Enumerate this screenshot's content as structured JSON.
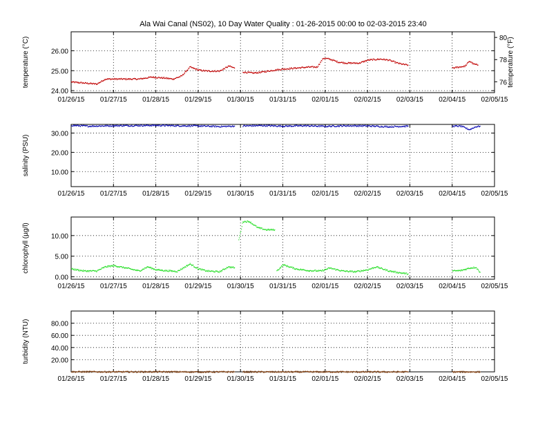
{
  "figure": {
    "title": "Ala Wai Canal (NS02), 10 Day Water Quality : 01-26-2015 00:00 to 02-03-2015 23:40"
  },
  "chart_data": [
    {
      "type": "scatter",
      "ylabel": "temperature (°C)",
      "y2label": "temperature (°F)",
      "x_tick_labels": [
        "01/26/15",
        "01/27/15",
        "01/28/15",
        "01/29/15",
        "01/30/15",
        "01/31/15",
        "02/01/15",
        "02/02/15",
        "02/03/15",
        "02/04/15",
        "02/05/15"
      ],
      "xlim": [
        0,
        10
      ],
      "ylim": [
        23.9,
        26.95
      ],
      "y_ticks": [
        24.0,
        25.0,
        26.0
      ],
      "y_tick_labels": [
        "24.00",
        "25.00",
        "26.00"
      ],
      "y2_ticks_f": [
        76,
        78,
        80
      ],
      "y2_tick_labels": [
        "76",
        "78",
        "80"
      ],
      "grid": true,
      "color": "#c00000",
      "segments": [
        {
          "x": [
            0.0,
            0.3,
            0.6,
            0.8,
            1.0,
            1.3,
            1.6,
            1.9,
            2.2,
            2.4,
            2.6,
            2.8,
            3.0,
            3.2,
            3.5,
            3.72,
            3.85
          ],
          "y": [
            24.45,
            24.4,
            24.35,
            24.6,
            24.6,
            24.6,
            24.6,
            24.7,
            24.65,
            24.6,
            24.75,
            25.2,
            25.05,
            25.0,
            25.0,
            25.25,
            25.15
          ]
        },
        {
          "x": [
            4.05,
            4.3,
            4.5,
            4.8,
            5.0,
            5.3,
            5.6,
            5.8,
            5.95,
            6.1,
            6.3,
            6.5,
            6.8,
            7.0,
            7.3,
            7.5,
            7.7,
            7.8,
            7.95
          ],
          "y": [
            24.95,
            24.9,
            24.95,
            25.05,
            25.1,
            25.15,
            25.2,
            25.2,
            25.65,
            25.6,
            25.45,
            25.4,
            25.4,
            25.55,
            25.6,
            25.55,
            25.4,
            25.35,
            25.3
          ]
        },
        {
          "x": [
            9.0,
            9.15,
            9.3,
            9.4,
            9.5,
            9.6
          ],
          "y": [
            25.15,
            25.2,
            25.25,
            25.5,
            25.35,
            25.3
          ]
        }
      ]
    },
    {
      "type": "scatter",
      "ylabel": "salinity (PSU)",
      "x_tick_labels": [
        "01/26/15",
        "01/27/15",
        "01/28/15",
        "01/29/15",
        "01/30/15",
        "01/31/15",
        "02/01/15",
        "02/02/15",
        "02/03/15",
        "02/04/15",
        "02/05/15"
      ],
      "xlim": [
        0,
        10
      ],
      "ylim": [
        2.2,
        34.5
      ],
      "y_ticks": [
        10,
        20,
        30
      ],
      "y_tick_labels": [
        "10.00",
        "20.00",
        "30.00"
      ],
      "grid": true,
      "color": "#0000b0",
      "segments": [
        {
          "x": [
            0.0,
            0.4,
            0.9,
            1.5,
            2.0,
            2.5,
            3.0,
            3.5,
            3.85
          ],
          "y": [
            34.2,
            33.8,
            34.0,
            34.1,
            34.2,
            34.0,
            33.9,
            33.6,
            33.8
          ]
        },
        {
          "x": [
            4.05,
            4.5,
            5.0,
            5.5,
            6.0,
            6.5,
            7.0,
            7.5,
            7.95
          ],
          "y": [
            33.9,
            34.1,
            33.8,
            34.0,
            33.7,
            34.0,
            33.9,
            33.5,
            33.8
          ]
        },
        {
          "x": [
            9.0,
            9.2,
            9.4,
            9.55,
            9.65
          ],
          "y": [
            33.8,
            33.8,
            32.0,
            33.5,
            33.8
          ]
        }
      ]
    },
    {
      "type": "scatter",
      "ylabel": "chlorophyll (µg/l)",
      "x_tick_labels": [
        "01/26/15",
        "01/27/15",
        "01/28/15",
        "01/29/15",
        "01/30/15",
        "01/31/15",
        "02/01/15",
        "02/02/15",
        "02/03/15",
        "02/04/15",
        "02/05/15"
      ],
      "xlim": [
        0,
        10
      ],
      "ylim": [
        -0.6,
        14.5
      ],
      "y_ticks": [
        0,
        5,
        10
      ],
      "y_tick_labels": [
        "0.00",
        "5.00",
        "10.00"
      ],
      "grid": true,
      "color": "#22dd22",
      "segments": [
        {
          "x": [
            0.0,
            0.3,
            0.6,
            0.8,
            1.0,
            1.3,
            1.6,
            1.8,
            2.0,
            2.2,
            2.5,
            2.8,
            3.0,
            3.2,
            3.5,
            3.7,
            3.85
          ],
          "y": [
            2.0,
            1.5,
            1.5,
            2.5,
            2.8,
            2.2,
            1.5,
            2.5,
            1.8,
            1.6,
            1.4,
            3.2,
            2.0,
            1.5,
            1.3,
            2.5,
            2.3
          ]
        },
        {
          "x": [
            3.95,
            4.05,
            4.2,
            4.4,
            4.6,
            4.8
          ],
          "y": [
            9.0,
            13.5,
            13.5,
            12.0,
            11.5,
            11.5
          ]
        },
        {
          "x": [
            4.85,
            5.0,
            5.3,
            5.6,
            5.9,
            6.1,
            6.4,
            6.7,
            7.0,
            7.2,
            7.5,
            7.8,
            7.95
          ],
          "y": [
            1.5,
            3.0,
            2.0,
            1.6,
            1.5,
            2.2,
            1.5,
            1.3,
            1.8,
            2.5,
            1.5,
            1.0,
            0.8
          ]
        },
        {
          "x": [
            9.0,
            9.2,
            9.4,
            9.55,
            9.65
          ],
          "y": [
            1.5,
            1.6,
            2.2,
            2.4,
            1.2
          ]
        }
      ]
    },
    {
      "type": "scatter",
      "ylabel": "turbidity (NTU)",
      "x_tick_labels": [
        "01/26/15",
        "01/27/15",
        "01/28/15",
        "01/29/15",
        "01/30/15",
        "01/31/15",
        "02/01/15",
        "02/02/15",
        "02/03/15",
        "02/04/15",
        "02/05/15"
      ],
      "xlim": [
        0,
        10
      ],
      "ylim": [
        0,
        100
      ],
      "y_ticks": [
        20,
        40,
        60,
        80
      ],
      "y_tick_labels": [
        "20.00",
        "40.00",
        "60.00",
        "80.00"
      ],
      "grid": true,
      "color": "#8b4513",
      "segments": [
        {
          "x": [
            0.0,
            1.0,
            2.0,
            3.0,
            3.85
          ],
          "y": [
            0.8,
            0.6,
            0.7,
            0.5,
            0.6
          ]
        },
        {
          "x": [
            4.05,
            5.0,
            6.0,
            7.0,
            7.95
          ],
          "y": [
            0.6,
            0.5,
            0.6,
            0.5,
            0.6
          ]
        },
        {
          "x": [
            9.0,
            9.65
          ],
          "y": [
            0.5,
            0.6
          ]
        }
      ]
    }
  ]
}
